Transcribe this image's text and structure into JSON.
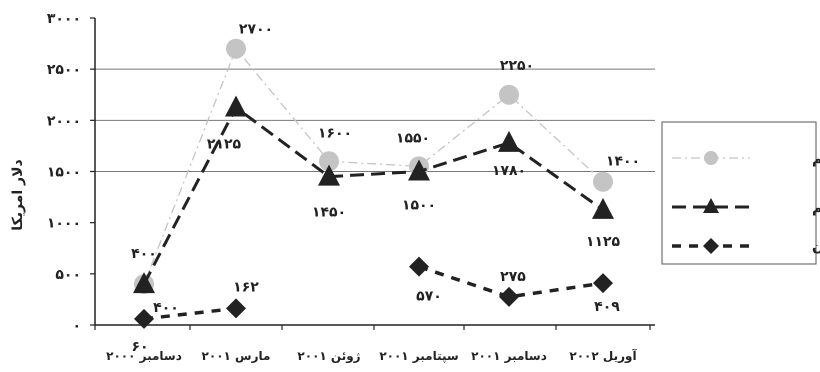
{
  "chart_data": {
    "type": "line",
    "ylabel": "دلار امریکا",
    "ylim": [
      0,
      3000
    ],
    "yticks": [
      {
        "value": 0,
        "label": "۰"
      },
      {
        "value": 500,
        "label": "۵۰۰"
      },
      {
        "value": 1000,
        "label": "۱۰۰۰"
      },
      {
        "value": 1500,
        "label": "۱۵۰۰"
      },
      {
        "value": 2000,
        "label": "۲۰۰۰"
      },
      {
        "value": 2500,
        "label": "۲۵۰۰"
      },
      {
        "value": 3000,
        "label": "۳۰۰۰"
      }
    ],
    "gridlines": [
      1500,
      2000,
      2500
    ],
    "categories": [
      "دسامبر ۲۰۰۰",
      "مارس ۲۰۰۱",
      "ژوئن ۲۰۰۱",
      "سپتامبر ۲۰۰۱",
      "دسامبر ۲۰۰۱",
      "آوریل ۲۰۰۲"
    ],
    "legend_position": "right",
    "series": [
      {
        "name": "ماکزیمم",
        "color": "#c4c4c4",
        "line_style": "dash-dot",
        "marker": "circle",
        "values": [
          400,
          2700,
          1600,
          1550,
          2250,
          1400
        ],
        "labels": [
          "۴۰۰",
          "۲۷۰۰",
          "۱۶۰۰",
          "۱۵۵۰",
          "۲۲۵۰",
          "۱۴۰۰"
        ]
      },
      {
        "name": "مینیمم",
        "color": "#222222",
        "line_style": "long-dash",
        "marker": "triangle",
        "values": [
          400,
          2125,
          1450,
          1500,
          1780,
          1125
        ],
        "labels": [
          "۴۰۰",
          "۲۱۲۵",
          "۱۴۵۰",
          "۱۵۰۰",
          "۱۷۸۰",
          "۱۱۲۵"
        ]
      },
      {
        "name": "افغانستان",
        "color": "#222222",
        "line_style": "dash",
        "marker": "diamond",
        "values": [
          60,
          162,
          null,
          570,
          275,
          409
        ],
        "labels": [
          "۶۰",
          "۱۶۲",
          null,
          "۵۷۰",
          "۲۷۵",
          "۴۰۹"
        ]
      }
    ]
  }
}
